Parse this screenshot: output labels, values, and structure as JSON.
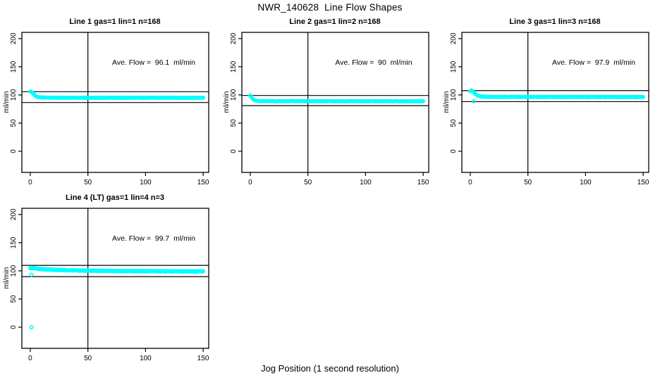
{
  "chart_data": {
    "type": "scatter",
    "title": "NWR_140628  Line Flow Shapes",
    "xlabel": "Jog Position (1 second resolution)",
    "point_color": "#00FFFF",
    "axis_color": "#000000",
    "background": "#FFFFFF",
    "legend": "none",
    "panels": [
      {
        "title": "Line 1 gas=1 lin=1 n=168",
        "annotation": "Ave. Flow =  96.1  ml/min",
        "ave_flow_ml_min": 96.1,
        "n_traces": 168,
        "ylabel": "ml/min",
        "xlim": [
          -7.3,
          154.8
        ],
        "ylim": [
          -37.5,
          211
        ],
        "xticks": [
          0,
          50,
          100,
          150
        ],
        "yticks": [
          0,
          50,
          100,
          150,
          200
        ],
        "vline_x": 50,
        "ref_line_upper": 105.7,
        "ref_line_lower": 86.5,
        "profile": [
          [
            0,
            106.5
          ],
          [
            1,
            105.5
          ],
          [
            2,
            103.5
          ],
          [
            3,
            101
          ],
          [
            4,
            99
          ],
          [
            5,
            97.5
          ],
          [
            6,
            96.5
          ],
          [
            8,
            95.8
          ],
          [
            12,
            95.2
          ],
          [
            30,
            95
          ],
          [
            150,
            95
          ]
        ],
        "band_jitter": 1.0,
        "overlays": 3,
        "outliers": []
      },
      {
        "title": "Line 2 gas=1 lin=2 n=168",
        "annotation": "Ave. Flow =  90  ml/min",
        "ave_flow_ml_min": 90,
        "n_traces": 168,
        "ylabel": "ml/min",
        "xlim": [
          -7.3,
          154.8
        ],
        "ylim": [
          -37.5,
          211
        ],
        "xticks": [
          0,
          50,
          100,
          150
        ],
        "yticks": [
          0,
          50,
          100,
          150,
          200
        ],
        "vline_x": 50,
        "ref_line_upper": 99,
        "ref_line_lower": 81,
        "profile": [
          [
            0,
            99.5
          ],
          [
            1,
            96.5
          ],
          [
            2,
            93.5
          ],
          [
            3,
            91.5
          ],
          [
            4,
            90.3
          ],
          [
            6,
            89.5
          ],
          [
            10,
            89
          ],
          [
            150,
            88.8
          ]
        ],
        "band_jitter": 1.0,
        "overlays": 3,
        "outliers": []
      },
      {
        "title": "Line 3 gas=1 lin=3 n=168",
        "annotation": "Ave. Flow =  97.9  ml/min",
        "ave_flow_ml_min": 97.9,
        "n_traces": 168,
        "ylabel": "ml/min",
        "xlim": [
          -7.3,
          154.8
        ],
        "ylim": [
          -37.5,
          211
        ],
        "xticks": [
          0,
          50,
          100,
          150
        ],
        "yticks": [
          0,
          50,
          100,
          150,
          200
        ],
        "vline_x": 50,
        "ref_line_upper": 107.7,
        "ref_line_lower": 88.1,
        "profile": [
          [
            0,
            107
          ],
          [
            1,
            108
          ],
          [
            2,
            107
          ],
          [
            3,
            105
          ],
          [
            4,
            102.5
          ],
          [
            5,
            100.5
          ],
          [
            7,
            98.5
          ],
          [
            10,
            97
          ],
          [
            15,
            96.5
          ],
          [
            150,
            96.3
          ]
        ],
        "band_jitter": 1.0,
        "overlays": 3,
        "outliers": [
          [
            3,
            89
          ]
        ]
      },
      {
        "title": "Line 4 (LT) gas=1 lin=4 n=3",
        "annotation": "Ave. Flow =  99.7  ml/min",
        "ave_flow_ml_min": 99.7,
        "n_traces": 3,
        "ylabel": "ml/min",
        "xlim": [
          -7.3,
          154.8
        ],
        "ylim": [
          -37.5,
          211
        ],
        "xticks": [
          0,
          50,
          100,
          150
        ],
        "yticks": [
          0,
          50,
          100,
          150,
          200
        ],
        "vline_x": 50,
        "ref_line_upper": 109.7,
        "ref_line_lower": 89.7,
        "profile": [
          [
            0,
            105.5
          ],
          [
            2,
            105
          ],
          [
            5,
            104
          ],
          [
            10,
            103
          ],
          [
            20,
            102
          ],
          [
            35,
            101
          ],
          [
            50,
            100.3
          ],
          [
            80,
            99.7
          ],
          [
            120,
            99.2
          ],
          [
            150,
            99
          ]
        ],
        "band_jitter": 1.7,
        "overlays": 4,
        "outliers": [
          [
            1,
            93
          ],
          [
            1,
            0
          ]
        ]
      }
    ]
  }
}
